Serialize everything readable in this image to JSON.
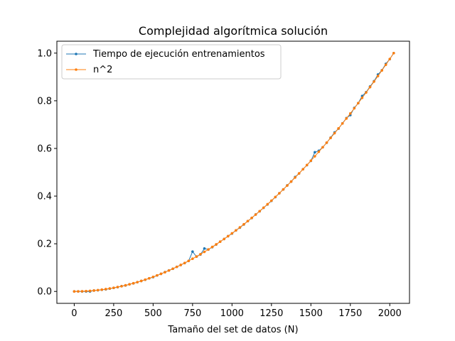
{
  "chart_data": {
    "type": "line",
    "title": "Complejidad algorítmica solución",
    "xlabel": "Tamaño del set de datos (N)",
    "ylabel": "",
    "xlim": [
      -110,
      2125
    ],
    "ylim": [
      -0.05,
      1.05
    ],
    "xticks": [
      0,
      250,
      500,
      750,
      1000,
      1250,
      1500,
      1750,
      2000
    ],
    "yticks": [
      0.0,
      0.2,
      0.4,
      0.6,
      0.8,
      1.0
    ],
    "xtick_labels": [
      "0",
      "250",
      "500",
      "750",
      "1000",
      "1250",
      "1500",
      "1750",
      "2000"
    ],
    "ytick_labels": [
      "0.0",
      "0.2",
      "0.4",
      "0.6",
      "0.8",
      "1.0"
    ],
    "grid": false,
    "legend_position": "top-left",
    "series": [
      {
        "name": "Tiempo de ejecución entrenamientos",
        "color": "#1f77b4",
        "x": [
          0,
          25,
          50,
          75,
          100,
          125,
          150,
          175,
          200,
          225,
          250,
          275,
          300,
          325,
          350,
          375,
          400,
          425,
          450,
          475,
          500,
          525,
          550,
          575,
          600,
          625,
          650,
          675,
          700,
          725,
          750,
          775,
          800,
          825,
          850,
          875,
          900,
          925,
          950,
          975,
          1000,
          1025,
          1050,
          1075,
          1100,
          1125,
          1150,
          1175,
          1200,
          1225,
          1250,
          1275,
          1300,
          1325,
          1350,
          1375,
          1400,
          1425,
          1450,
          1475,
          1500,
          1525,
          1550,
          1575,
          1600,
          1625,
          1650,
          1675,
          1700,
          1725,
          1750,
          1775,
          1800,
          1825,
          1850,
          1875,
          1900,
          1925,
          1950,
          1975,
          2000,
          2025
        ],
        "y": [
          0.0,
          0.0,
          0.0,
          0.0,
          0.0,
          0.004,
          0.005,
          0.007,
          0.009,
          0.012,
          0.015,
          0.018,
          0.022,
          0.025,
          0.03,
          0.034,
          0.039,
          0.044,
          0.049,
          0.055,
          0.06,
          0.067,
          0.074,
          0.081,
          0.088,
          0.095,
          0.103,
          0.111,
          0.119,
          0.128,
          0.167,
          0.146,
          0.155,
          0.18,
          0.176,
          0.186,
          0.197,
          0.209,
          0.22,
          0.232,
          0.243,
          0.256,
          0.268,
          0.281,
          0.295,
          0.308,
          0.323,
          0.336,
          0.351,
          0.365,
          0.38,
          0.396,
          0.412,
          0.428,
          0.445,
          0.461,
          0.48,
          0.495,
          0.513,
          0.53,
          0.548,
          0.584,
          0.59,
          0.605,
          0.624,
          0.645,
          0.667,
          0.683,
          0.705,
          0.727,
          0.74,
          0.77,
          0.79,
          0.82,
          0.836,
          0.86,
          0.882,
          0.91,
          0.928,
          0.955,
          0.975,
          1.0
        ]
      },
      {
        "name": "n^2",
        "color": "#ff7f0e",
        "x": [
          0,
          25,
          50,
          75,
          100,
          125,
          150,
          175,
          200,
          225,
          250,
          275,
          300,
          325,
          350,
          375,
          400,
          425,
          450,
          475,
          500,
          525,
          550,
          575,
          600,
          625,
          650,
          675,
          700,
          725,
          750,
          775,
          800,
          825,
          850,
          875,
          900,
          925,
          950,
          975,
          1000,
          1025,
          1050,
          1075,
          1100,
          1125,
          1150,
          1175,
          1200,
          1225,
          1250,
          1275,
          1300,
          1325,
          1350,
          1375,
          1400,
          1425,
          1450,
          1475,
          1500,
          1525,
          1550,
          1575,
          1600,
          1625,
          1650,
          1675,
          1700,
          1725,
          1750,
          1775,
          1800,
          1825,
          1850,
          1875,
          1900,
          1925,
          1950,
          1975,
          2000,
          2025
        ],
        "y": [
          0.0,
          0.0002,
          0.0006,
          0.0014,
          0.0024,
          0.0038,
          0.0055,
          0.0075,
          0.0098,
          0.0123,
          0.0152,
          0.0184,
          0.0219,
          0.0258,
          0.0299,
          0.0343,
          0.039,
          0.044,
          0.0494,
          0.055,
          0.061,
          0.0672,
          0.0738,
          0.0806,
          0.0878,
          0.0953,
          0.103,
          0.1111,
          0.1195,
          0.1282,
          0.1372,
          0.1465,
          0.1561,
          0.166,
          0.1762,
          0.1867,
          0.1975,
          0.2087,
          0.2201,
          0.2318,
          0.2439,
          0.2562,
          0.2689,
          0.2818,
          0.2951,
          0.3086,
          0.3225,
          0.3367,
          0.3512,
          0.3659,
          0.381,
          0.3964,
          0.4121,
          0.4281,
          0.4444,
          0.461,
          0.4779,
          0.4952,
          0.5127,
          0.5305,
          0.5487,
          0.5671,
          0.5859,
          0.6049,
          0.6243,
          0.6439,
          0.6639,
          0.6842,
          0.7048,
          0.7256,
          0.7468,
          0.7683,
          0.7901,
          0.8122,
          0.8346,
          0.8573,
          0.8803,
          0.9036,
          0.9272,
          0.9512,
          0.9754,
          1.0
        ]
      }
    ]
  }
}
